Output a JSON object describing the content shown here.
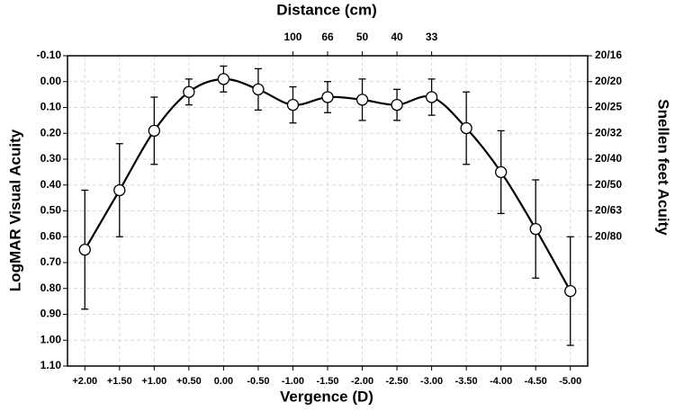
{
  "chart_data": {
    "type": "line",
    "x_title": "Vergence (D)",
    "y_title": "LogMAR Visual Acuity",
    "y2_title": "Snellen feet Acuity",
    "x2_title": "Distance (cm)",
    "categories": [
      "+2.00",
      "+1.50",
      "+1.00",
      "+0.50",
      "0.00",
      "-0.50",
      "-1.00",
      "-1.50",
      "-2.00",
      "-2.50",
      "-3.00",
      "-3.50",
      "-4.00",
      "-4.50",
      "-5.00"
    ],
    "values": [
      0.65,
      0.42,
      0.19,
      0.04,
      -0.01,
      0.03,
      0.09,
      0.06,
      0.07,
      0.09,
      0.06,
      0.18,
      0.35,
      0.57,
      0.81
    ],
    "errors": [
      0.23,
      0.18,
      0.13,
      0.05,
      0.05,
      0.08,
      0.07,
      0.06,
      0.08,
      0.06,
      0.07,
      0.14,
      0.16,
      0.19,
      0.21
    ],
    "color": "#000000",
    "marker_fill": "#ffffff",
    "y_inverted": true,
    "ylim": [
      -0.1,
      1.1
    ],
    "yticks": [
      {
        "value": -0.1,
        "label": "-0.10"
      },
      {
        "value": 0,
        "label": "0.00"
      },
      {
        "value": 0.1,
        "label": "0.10"
      },
      {
        "value": 0.2,
        "label": "0.20"
      },
      {
        "value": 0.3,
        "label": "0.30"
      },
      {
        "value": 0.4,
        "label": "0.40"
      },
      {
        "value": 0.5,
        "label": "0.50"
      },
      {
        "value": 0.6,
        "label": "0.60"
      },
      {
        "value": 0.7,
        "label": "0.70"
      },
      {
        "value": 0.8,
        "label": "0.80"
      },
      {
        "value": 0.9,
        "label": "0.90"
      },
      {
        "value": 1.0,
        "label": "1.00"
      },
      {
        "value": 1.1,
        "label": "1.10"
      }
    ],
    "y2lim": [
      -0.1,
      1.1
    ],
    "y2ticks": [
      {
        "value": -0.1,
        "label": "20/16"
      },
      {
        "value": 0,
        "label": "20/20"
      },
      {
        "value": 0.1,
        "label": "20/25"
      },
      {
        "value": 0.2,
        "label": "20/32"
      },
      {
        "value": 0.3,
        "label": "20/40"
      },
      {
        "value": 0.4,
        "label": "20/50"
      },
      {
        "value": 0.5,
        "label": "20/63"
      },
      {
        "value": 0.6,
        "label": "20/80"
      }
    ],
    "x2ticks": [
      {
        "value": "-1.00",
        "label": "100"
      },
      {
        "value": "-1.50",
        "label": "66"
      },
      {
        "value": "-2.00",
        "label": "50"
      },
      {
        "value": "-2.50",
        "label": "40"
      },
      {
        "value": "-3.00",
        "label": "33"
      }
    ],
    "grid": true
  }
}
